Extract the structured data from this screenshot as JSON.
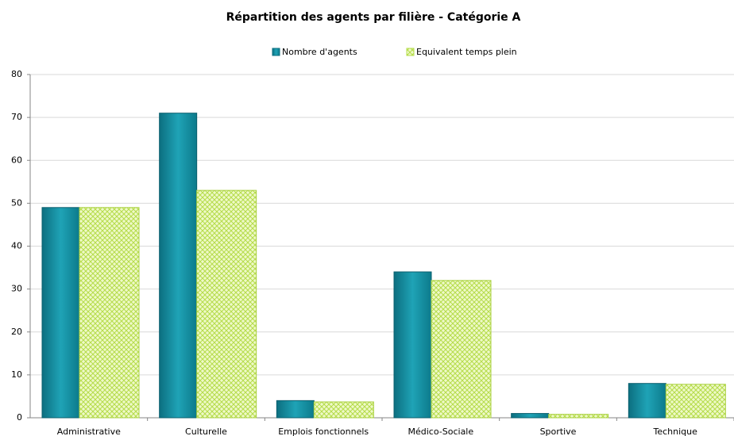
{
  "chart_data": {
    "type": "bar",
    "title": "Répartition des agents par filière - Catégorie A",
    "categories": [
      "Administrative",
      "Culturelle",
      "Emplois fonctionnels",
      "Médico-Sociale",
      "Sportive",
      "Technique"
    ],
    "series": [
      {
        "name": "Nombre d'agents",
        "color": "#1a93a6",
        "values": [
          49,
          71,
          4,
          34,
          1,
          8
        ]
      },
      {
        "name": "Equivalent temps plein",
        "color": "#d8f08a",
        "values": [
          49,
          53,
          3.7,
          32,
          0.8,
          7.8
        ]
      }
    ],
    "ylim": [
      0,
      80
    ],
    "yticks": [
      0,
      10,
      20,
      30,
      40,
      50,
      60,
      70,
      80
    ],
    "grid": true,
    "legend": "top"
  }
}
